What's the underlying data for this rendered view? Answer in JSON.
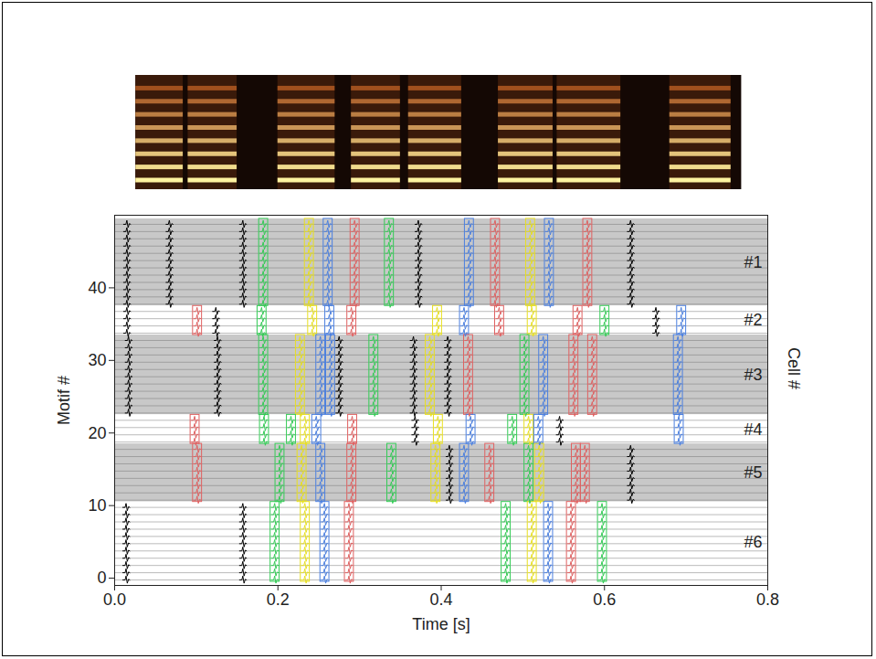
{
  "chart_data": [
    {
      "type": "spectrogram",
      "xlim": [
        0,
        0.8
      ],
      "extent": [
        0.026,
        0.768
      ],
      "tick_labels": false,
      "syllables": [
        [
          0.026,
          0.084
        ],
        [
          0.09,
          0.15
        ],
        [
          0.2,
          0.27
        ],
        [
          0.29,
          0.35
        ],
        [
          0.36,
          0.425
        ],
        [
          0.47,
          0.537
        ],
        [
          0.542,
          0.62
        ],
        [
          0.68,
          0.755
        ]
      ]
    },
    {
      "type": "raster",
      "xlabel": "Time [s]",
      "ylabel": "Motif #",
      "y2label": "Cell #",
      "xlim": [
        0,
        0.8
      ],
      "ylim": [
        -1,
        50
      ],
      "xticks": [
        {
          "value": 0,
          "label": "0.0"
        },
        0.2,
        0.4,
        0.6,
        0.8
      ],
      "yticks": [
        0,
        10,
        20,
        30,
        40
      ],
      "cells": [
        {
          "name": "#1",
          "motifs": [
            38,
            49
          ],
          "color": "#c8c8c8",
          "spikes": [
            {
              "time": 0.015,
              "color": "#000000"
            },
            {
              "time": 0.067,
              "color": "#000000"
            },
            {
              "time": 0.157,
              "color": "#000000"
            },
            {
              "time": 0.182,
              "color": "#33cc55"
            },
            {
              "time": 0.238,
              "color": "#e8e020"
            },
            {
              "time": 0.261,
              "color": "#4a7fe0"
            },
            {
              "time": 0.294,
              "color": "#e06060"
            },
            {
              "time": 0.336,
              "color": "#33cc55"
            },
            {
              "time": 0.372,
              "color": "#000000"
            },
            {
              "time": 0.434,
              "color": "#4a7fe0"
            },
            {
              "time": 0.466,
              "color": "#e06060"
            },
            {
              "time": 0.509,
              "color": "#e8e020"
            },
            {
              "time": 0.532,
              "color": "#4a7fe0"
            },
            {
              "time": 0.579,
              "color": "#e06060"
            },
            {
              "time": 0.632,
              "color": "#000000"
            }
          ]
        },
        {
          "name": "#2",
          "motifs": [
            34,
            37
          ],
          "color": "#ffffff",
          "spikes": [
            {
              "time": 0.015,
              "color": "#000000"
            },
            {
              "time": 0.101,
              "color": "#e06060"
            },
            {
              "time": 0.124,
              "color": "#000000"
            },
            {
              "time": 0.18,
              "color": "#33cc55"
            },
            {
              "time": 0.242,
              "color": "#e8e020"
            },
            {
              "time": 0.263,
              "color": "#4a7fe0"
            },
            {
              "time": 0.29,
              "color": "#e06060"
            },
            {
              "time": 0.395,
              "color": "#e8e020"
            },
            {
              "time": 0.428,
              "color": "#4a7fe0"
            },
            {
              "time": 0.471,
              "color": "#e06060"
            },
            {
              "time": 0.511,
              "color": "#e8e020"
            },
            {
              "time": 0.567,
              "color": "#e06060"
            },
            {
              "time": 0.6,
              "color": "#33cc55"
            },
            {
              "time": 0.663,
              "color": "#000000"
            },
            {
              "time": 0.694,
              "color": "#4a7fe0"
            }
          ]
        },
        {
          "name": "#3",
          "motifs": [
            23,
            33
          ],
          "color": "#c8c8c8",
          "spikes": [
            {
              "time": 0.017,
              "color": "#000000"
            },
            {
              "time": 0.126,
              "color": "#000000"
            },
            {
              "time": 0.182,
              "color": "#33cc55"
            },
            {
              "time": 0.227,
              "color": "#e8e020"
            },
            {
              "time": 0.252,
              "color": "#4a7fe0"
            },
            {
              "time": 0.264,
              "color": "#4a7fe0"
            },
            {
              "time": 0.275,
              "color": "#000000"
            },
            {
              "time": 0.317,
              "color": "#33cc55"
            },
            {
              "time": 0.366,
              "color": "#000000"
            },
            {
              "time": 0.386,
              "color": "#e8e020"
            },
            {
              "time": 0.408,
              "color": "#000000"
            },
            {
              "time": 0.433,
              "color": "#e06060"
            },
            {
              "time": 0.502,
              "color": "#33cc55"
            },
            {
              "time": 0.525,
              "color": "#4a7fe0"
            },
            {
              "time": 0.562,
              "color": "#e06060"
            },
            {
              "time": 0.585,
              "color": "#e06060"
            },
            {
              "time": 0.69,
              "color": "#4a7fe0"
            }
          ]
        },
        {
          "name": "#4",
          "motifs": [
            19,
            22
          ],
          "color": "#ffffff",
          "spikes": [
            {
              "time": 0.098,
              "color": "#e06060"
            },
            {
              "time": 0.183,
              "color": "#33cc55"
            },
            {
              "time": 0.216,
              "color": "#33cc55"
            },
            {
              "time": 0.233,
              "color": "#e8e020"
            },
            {
              "time": 0.247,
              "color": "#4a7fe0"
            },
            {
              "time": 0.291,
              "color": "#e06060"
            },
            {
              "time": 0.368,
              "color": "#000000"
            },
            {
              "time": 0.396,
              "color": "#e8e020"
            },
            {
              "time": 0.436,
              "color": "#4a7fe0"
            },
            {
              "time": 0.487,
              "color": "#33cc55"
            },
            {
              "time": 0.507,
              "color": "#e8e020"
            },
            {
              "time": 0.519,
              "color": "#4a7fe0"
            },
            {
              "time": 0.545,
              "color": "#000000"
            },
            {
              "time": 0.691,
              "color": "#4a7fe0"
            }
          ]
        },
        {
          "name": "#5",
          "motifs": [
            11,
            18
          ],
          "color": "#c8c8c8",
          "spikes": [
            {
              "time": 0.101,
              "color": "#e06060"
            },
            {
              "time": 0.202,
              "color": "#33cc55"
            },
            {
              "time": 0.229,
              "color": "#e8e020"
            },
            {
              "time": 0.252,
              "color": "#4a7fe0"
            },
            {
              "time": 0.29,
              "color": "#e06060"
            },
            {
              "time": 0.339,
              "color": "#33cc55"
            },
            {
              "time": 0.393,
              "color": "#e8e020"
            },
            {
              "time": 0.41,
              "color": "#000000"
            },
            {
              "time": 0.428,
              "color": "#4a7fe0"
            },
            {
              "time": 0.459,
              "color": "#e06060"
            },
            {
              "time": 0.507,
              "color": "#33cc55"
            },
            {
              "time": 0.52,
              "color": "#e8e020"
            },
            {
              "time": 0.565,
              "color": "#e06060"
            },
            {
              "time": 0.576,
              "color": "#e06060"
            },
            {
              "time": 0.632,
              "color": "#000000"
            }
          ]
        },
        {
          "name": "#6",
          "motifs": [
            0,
            10
          ],
          "color": "#ffffff",
          "spikes": [
            {
              "time": 0.014,
              "color": "#000000"
            },
            {
              "time": 0.157,
              "color": "#000000"
            },
            {
              "time": 0.196,
              "color": "#33cc55"
            },
            {
              "time": 0.233,
              "color": "#e8e020"
            },
            {
              "time": 0.257,
              "color": "#4a7fe0"
            },
            {
              "time": 0.287,
              "color": "#e06060"
            },
            {
              "time": 0.479,
              "color": "#33cc55"
            },
            {
              "time": 0.511,
              "color": "#e8e020"
            },
            {
              "time": 0.531,
              "color": "#4a7fe0"
            },
            {
              "time": 0.559,
              "color": "#e06060"
            },
            {
              "time": 0.597,
              "color": "#33cc55"
            }
          ]
        }
      ]
    }
  ]
}
